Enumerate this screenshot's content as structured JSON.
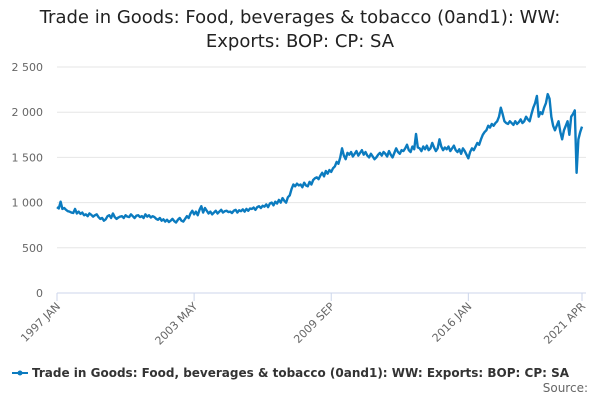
{
  "chart_data": {
    "type": "line",
    "title": "Trade in Goods: Food, beverages & tobacco (0and1): WW: Exports: BOP: CP: SA",
    "source": "Source:",
    "ylim": [
      0,
      2500
    ],
    "yticks": [
      0,
      500,
      {
        "value": 1000,
        "label": "1 000"
      },
      {
        "value": 1500,
        "label": "1 500"
      },
      {
        "value": 2000,
        "label": "2 000"
      },
      {
        "value": 2500,
        "label": "2 500"
      }
    ],
    "grid": true,
    "categories": [
      "1997 JAN",
      null,
      null,
      null,
      null,
      null,
      null,
      null,
      null,
      null,
      null,
      null,
      null,
      null,
      null,
      null,
      null,
      null,
      null,
      null,
      null,
      null,
      null,
      null,
      null,
      null,
      null,
      null,
      null,
      null,
      null,
      null,
      null,
      null,
      null,
      null,
      null,
      null,
      null,
      null,
      null,
      null,
      null,
      null,
      null,
      null,
      null,
      null,
      null,
      null,
      null,
      null,
      null,
      null,
      null,
      null,
      null,
      null,
      null,
      null,
      null,
      null,
      null,
      null,
      null,
      null,
      null,
      null,
      null,
      null,
      null,
      null,
      null,
      null,
      null,
      null,
      "2003 MAY",
      null,
      null,
      null,
      null,
      null,
      null,
      null,
      null,
      null,
      null,
      null,
      null,
      null,
      null,
      null,
      null,
      null,
      null,
      null,
      null,
      null,
      null,
      null,
      null,
      null,
      null,
      null,
      null,
      null,
      null,
      null,
      null,
      null,
      null,
      null,
      null,
      null,
      null,
      null,
      null,
      null,
      null,
      null,
      null,
      null,
      null,
      null,
      null,
      null,
      null,
      null,
      null,
      null,
      null,
      null,
      null,
      null,
      null,
      null,
      null,
      null,
      null,
      null,
      null,
      null,
      null,
      null,
      null,
      null,
      null,
      null,
      null,
      null,
      null,
      null,
      "2009 SEP",
      null,
      null,
      null,
      null,
      null,
      null,
      null,
      null,
      null,
      null,
      null,
      null,
      null,
      null,
      null,
      null,
      null,
      null,
      null,
      null,
      null,
      null,
      null,
      null,
      null,
      null,
      null,
      null,
      null,
      null,
      null,
      null,
      null,
      null,
      null,
      null,
      null,
      null,
      null,
      null,
      null,
      null,
      null,
      null,
      null,
      null,
      null,
      null,
      null,
      null,
      null,
      null,
      null,
      null,
      null,
      null,
      null,
      null,
      null,
      null,
      null,
      null,
      null,
      null,
      null,
      null,
      null,
      null,
      null,
      null,
      null,
      null,
      null,
      null,
      null,
      "2016 JAN",
      null,
      null,
      null,
      null,
      null,
      null,
      null,
      null,
      null,
      null,
      null,
      null,
      null,
      null,
      null,
      null,
      null,
      null,
      null,
      null,
      null,
      null,
      null,
      null,
      null,
      null,
      null,
      null,
      null,
      null,
      null,
      null,
      null,
      null,
      null,
      null,
      null,
      null,
      null,
      null,
      null,
      null,
      null,
      null,
      null,
      null,
      null,
      null,
      null,
      null,
      null,
      null,
      null,
      null,
      null,
      null,
      null,
      null,
      null,
      null,
      null,
      null,
      "2021 APR"
    ],
    "series": [
      {
        "name": "Trade in Goods: Food, beverages & tobacco (0and1): WW: Exports: BOP: CP: SA",
        "color": "#0b7bbf",
        "values": [
          950,
          935,
          1010,
          930,
          940,
          920,
          905,
          900,
          890,
          885,
          930,
          880,
          900,
          875,
          890,
          860,
          870,
          850,
          880,
          865,
          845,
          860,
          870,
          840,
          820,
          830,
          800,
          815,
          850,
          860,
          830,
          880,
          840,
          820,
          835,
          845,
          850,
          830,
          860,
          845,
          840,
          870,
          850,
          830,
          855,
          860,
          840,
          850,
          830,
          870,
          845,
          860,
          835,
          850,
          840,
          820,
          810,
          830,
          800,
          815,
          790,
          810,
          785,
          800,
          820,
          795,
          780,
          810,
          830,
          800,
          790,
          820,
          850,
          830,
          880,
          910,
          870,
          900,
          860,
          920,
          960,
          890,
          940,
          910,
          880,
          900,
          870,
          890,
          910,
          880,
          900,
          920,
          890,
          905,
          910,
          895,
          900,
          885,
          910,
          920,
          890,
          915,
          905,
          925,
          900,
          930,
          910,
          935,
          930,
          945,
          920,
          950,
          960,
          940,
          965,
          955,
          980,
          950,
          990,
          1000,
          970,
          1010,
          990,
          1030,
          1000,
          1050,
          1020,
          1000,
          1060,
          1080,
          1150,
          1200,
          1180,
          1210,
          1190,
          1200,
          1170,
          1220,
          1190,
          1180,
          1230,
          1200,
          1250,
          1270,
          1280,
          1260,
          1300,
          1330,
          1290,
          1350,
          1320,
          1360,
          1340,
          1380,
          1400,
          1450,
          1430,
          1500,
          1600,
          1520,
          1480,
          1550,
          1530,
          1560,
          1510,
          1540,
          1570,
          1520,
          1550,
          1580,
          1530,
          1560,
          1520,
          1500,
          1540,
          1510,
          1480,
          1500,
          1530,
          1550,
          1520,
          1560,
          1540,
          1510,
          1570,
          1530,
          1500,
          1550,
          1600,
          1560,
          1540,
          1580,
          1570,
          1600,
          1640,
          1580,
          1560,
          1620,
          1590,
          1760,
          1610,
          1600,
          1570,
          1620,
          1590,
          1630,
          1580,
          1600,
          1660,
          1610,
          1570,
          1600,
          1700,
          1620,
          1580,
          1610,
          1590,
          1620,
          1570,
          1600,
          1630,
          1580,
          1560,
          1590,
          1540,
          1600,
          1570,
          1530,
          1490,
          1560,
          1600,
          1580,
          1620,
          1660,
          1640,
          1700,
          1750,
          1780,
          1800,
          1850,
          1830,
          1870,
          1850,
          1880,
          1900,
          1950,
          2050,
          1980,
          1900,
          1880,
          1870,
          1900,
          1880,
          1860,
          1900,
          1870,
          1890,
          1920,
          1880,
          1900,
          1950,
          1920,
          1900,
          1980,
          2050,
          2100,
          2180,
          1950,
          2000,
          1980,
          2050,
          2100,
          2200,
          2150,
          1950,
          1850,
          1800,
          1850,
          1900,
          1780,
          1700,
          1800,
          1850,
          1900,
          1750,
          1950,
          1980,
          2020,
          1330,
          1700,
          1780,
          1840
        ]
      }
    ]
  }
}
